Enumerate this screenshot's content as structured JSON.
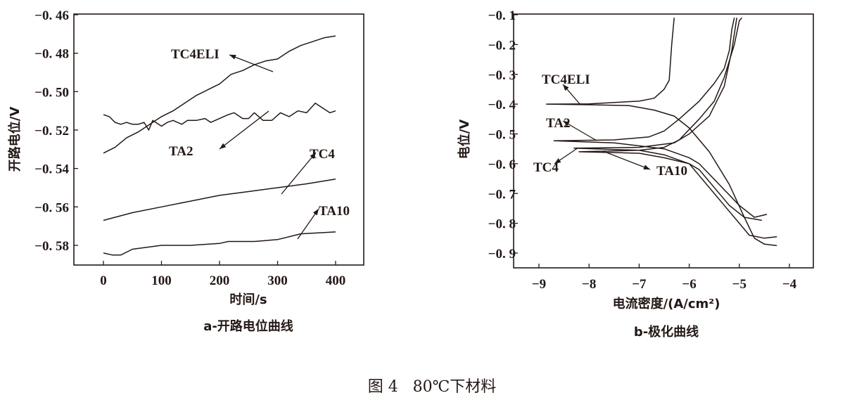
{
  "caption": "图 4   80℃下材料",
  "colors": {
    "line": "#231815",
    "background": "#ffffff"
  },
  "chart_data": [
    {
      "type": "line",
      "subtitle": "a-开路电位曲线",
      "xlabel": "时间/s",
      "ylabel": "开路电位/V",
      "xlim": [
        -50,
        450
      ],
      "ylim": [
        -0.59,
        -0.46
      ],
      "xticks": [
        0,
        100,
        200,
        300,
        400
      ],
      "xtick_labels": [
        "0",
        "100",
        "200",
        "300",
        "400"
      ],
      "yticks": [
        -0.46,
        -0.48,
        -0.5,
        -0.52,
        -0.54,
        -0.56,
        -0.58
      ],
      "ytick_labels": [
        "−0. 46",
        "−0. 48",
        "−0. 50",
        "−0. 52",
        "−0. 54",
        "−0. 56",
        "−0. 58"
      ],
      "grid": false,
      "series": [
        {
          "name": "TC4ELI",
          "x": [
            0,
            20,
            40,
            60,
            80,
            100,
            120,
            140,
            160,
            180,
            200,
            220,
            240,
            260,
            280,
            300,
            320,
            340,
            360,
            380,
            400
          ],
          "y": [
            -0.532,
            -0.529,
            -0.524,
            -0.521,
            -0.517,
            -0.513,
            -0.51,
            -0.506,
            -0.502,
            -0.499,
            -0.496,
            -0.491,
            -0.489,
            -0.486,
            -0.484,
            -0.483,
            -0.479,
            -0.476,
            -0.474,
            -0.472,
            -0.471
          ]
        },
        {
          "name": "TA2",
          "x": [
            0,
            10,
            20,
            30,
            40,
            50,
            60,
            70,
            78,
            85,
            100,
            110,
            120,
            135,
            145,
            160,
            175,
            185,
            200,
            215,
            225,
            240,
            250,
            260,
            275,
            290,
            305,
            320,
            335,
            350,
            365,
            380,
            390,
            400
          ],
          "y": [
            -0.512,
            -0.513,
            -0.516,
            -0.517,
            -0.516,
            -0.517,
            -0.517,
            -0.516,
            -0.52,
            -0.515,
            -0.518,
            -0.516,
            -0.515,
            -0.517,
            -0.515,
            -0.515,
            -0.514,
            -0.516,
            -0.514,
            -0.512,
            -0.511,
            -0.514,
            -0.514,
            -0.511,
            -0.515,
            -0.515,
            -0.511,
            -0.513,
            -0.51,
            -0.511,
            -0.506,
            -0.509,
            -0.511,
            -0.51
          ]
        },
        {
          "name": "TC4",
          "x": [
            0,
            50,
            100,
            150,
            200,
            250,
            300,
            350,
            400
          ],
          "y": [
            -0.567,
            -0.563,
            -0.56,
            -0.557,
            -0.554,
            -0.552,
            -0.55,
            -0.548,
            -0.5455
          ]
        },
        {
          "name": "TA10",
          "x": [
            0,
            15,
            30,
            50,
            100,
            150,
            200,
            215,
            260,
            300,
            340,
            400
          ],
          "y": [
            -0.584,
            -0.585,
            -0.585,
            -0.582,
            -0.58,
            -0.58,
            -0.579,
            -0.578,
            -0.578,
            -0.577,
            -0.574,
            -0.573
          ]
        }
      ]
    },
    {
      "type": "line",
      "subtitle": "b-极化曲线",
      "xlabel": "电流密度/(A/cm²)",
      "ylabel": "电位/V",
      "xlim": [
        -9.5,
        -3.5
      ],
      "ylim": [
        -0.95,
        -0.1
      ],
      "xticks": [
        -9,
        -8,
        -7,
        -6,
        -5,
        -4
      ],
      "xtick_labels": [
        "−9",
        "−8",
        "−7",
        "−6",
        "−5",
        "−4"
      ],
      "yticks": [
        -0.1,
        -0.2,
        -0.3,
        -0.4,
        -0.5,
        -0.6,
        -0.7,
        -0.8,
        -0.9
      ],
      "ytick_labels": [
        "−0. 1",
        "−0. 2",
        "−0. 3",
        "−0. 4",
        "−0. 5",
        "−0. 6",
        "−0. 7",
        "−0. 8",
        "−0. 9"
      ],
      "grid": false,
      "series": [
        {
          "name": "TC4ELI",
          "x": [
            -6.3,
            -6.35,
            -6.4,
            -6.5,
            -6.7,
            -7.0,
            -8.0,
            -8.85,
            -8.0,
            -7.2,
            -6.7,
            -6.3,
            -6.0,
            -5.6,
            -5.2,
            -4.9,
            -4.7,
            -4.5,
            -4.25
          ],
          "y": [
            -0.11,
            -0.2,
            -0.32,
            -0.35,
            -0.38,
            -0.39,
            -0.399,
            -0.4,
            -0.402,
            -0.405,
            -0.42,
            -0.44,
            -0.48,
            -0.56,
            -0.67,
            -0.78,
            -0.85,
            -0.87,
            -0.875
          ]
        },
        {
          "name": "TA2",
          "x": [
            -5.1,
            -5.15,
            -5.2,
            -5.3,
            -5.5,
            -5.8,
            -6.2,
            -6.5,
            -6.8,
            -7.5,
            -8.7,
            -7.5,
            -6.5,
            -6.0,
            -5.8,
            -5.4,
            -5.0,
            -4.7,
            -4.45
          ],
          "y": [
            -0.11,
            -0.15,
            -0.22,
            -0.28,
            -0.33,
            -0.39,
            -0.45,
            -0.49,
            -0.51,
            -0.52,
            -0.523,
            -0.53,
            -0.55,
            -0.58,
            -0.6,
            -0.67,
            -0.74,
            -0.78,
            -0.77
          ]
        },
        {
          "name": "TC4",
          "x": [
            -5.05,
            -5.15,
            -5.3,
            -5.6,
            -6.0,
            -6.3,
            -7.0,
            -8.3,
            -7.0,
            -6.5,
            -6.0,
            -5.8,
            -5.5,
            -5.2,
            -4.9,
            -4.55
          ],
          "y": [
            -0.11,
            -0.22,
            -0.34,
            -0.44,
            -0.5,
            -0.53,
            -0.545,
            -0.548,
            -0.555,
            -0.57,
            -0.6,
            -0.62,
            -0.68,
            -0.74,
            -0.78,
            -0.79
          ]
        },
        {
          "name": "TA10",
          "x": [
            -4.95,
            -5.0,
            -5.1,
            -5.3,
            -5.5,
            -5.8,
            -6.2,
            -6.5,
            -7.0,
            -8.2,
            -7.0,
            -6.5,
            -6.0,
            -5.8,
            -5.6,
            -5.3,
            -5.0,
            -4.8,
            -4.5,
            -4.25
          ],
          "y": [
            -0.11,
            -0.12,
            -0.2,
            -0.31,
            -0.39,
            -0.45,
            -0.52,
            -0.545,
            -0.555,
            -0.56,
            -0.565,
            -0.58,
            -0.6,
            -0.64,
            -0.68,
            -0.74,
            -0.8,
            -0.84,
            -0.85,
            -0.845
          ]
        }
      ]
    }
  ]
}
